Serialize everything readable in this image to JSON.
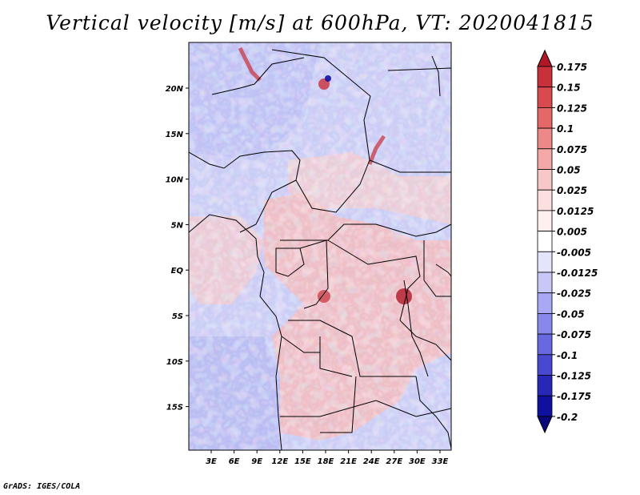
{
  "title": "Vertical velocity [m/s] at 600hPa, VT: 2020041815",
  "credit": "GrADS: IGES/COLA",
  "map": {
    "lat_labels": [
      "20N",
      "15N",
      "10N",
      "5N",
      "EQ",
      "5S",
      "10S",
      "15S"
    ],
    "lon_labels": [
      "3E",
      "6E",
      "9E",
      "12E",
      "15E",
      "18E",
      "21E",
      "24E",
      "27E",
      "30E",
      "33E"
    ]
  },
  "colorbar": {
    "labels": [
      "0.175",
      "0.15",
      "0.125",
      "0.1",
      "0.075",
      "0.05",
      "0.025",
      "0.0125",
      "0.005",
      "-0.005",
      "-0.0125",
      "-0.025",
      "-0.05",
      "-0.075",
      "-0.1",
      "-0.125",
      "-0.175",
      "-0.2"
    ],
    "colors": [
      "#b01828",
      "#c8303a",
      "#d84a4e",
      "#e46868",
      "#ec8888",
      "#f4a8a8",
      "#f8c8c8",
      "#fce0e0",
      "#fff0f0",
      "#ffffff",
      "#e4e4fc",
      "#c8c8f8",
      "#a8a8f4",
      "#8888ec",
      "#6868e0",
      "#4848d0",
      "#2828b8",
      "#1010a0",
      "#08087a"
    ]
  }
}
